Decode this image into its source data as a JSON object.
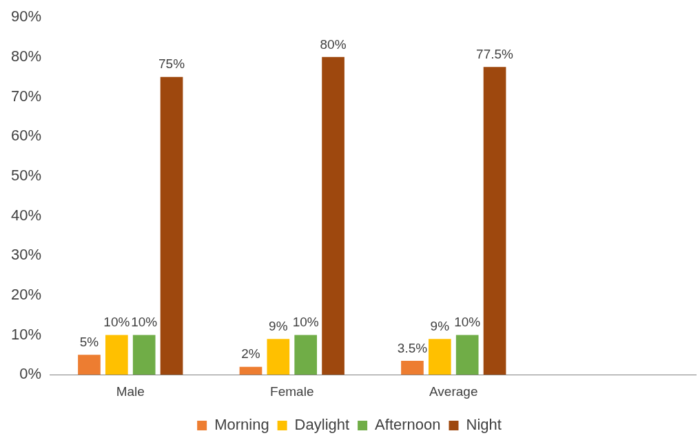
{
  "chart_data": {
    "type": "bar",
    "categories": [
      "Male",
      "Female",
      "Average",
      null
    ],
    "series": [
      {
        "name": "Morning",
        "color": "#ed7d31",
        "values": [
          5,
          2,
          3.5,
          null
        ],
        "value_labels": [
          "5%",
          "2%",
          "3.5%",
          null
        ]
      },
      {
        "name": "Daylight",
        "color": "#ffc000",
        "values": [
          10,
          9,
          9,
          null
        ],
        "value_labels": [
          "10%",
          "9%",
          "9%",
          null
        ]
      },
      {
        "name": "Afternoon",
        "color": "#70ad47",
        "values": [
          10,
          10,
          10,
          null
        ],
        "value_labels": [
          "10%",
          "10%",
          "10%",
          null
        ]
      },
      {
        "name": "Night",
        "color": "#9e480e",
        "values": [
          75,
          80,
          77.5,
          null
        ],
        "value_labels": [
          "75%",
          "80%",
          "77.5%",
          null
        ]
      }
    ],
    "ylim": [
      0,
      90
    ],
    "yticks": [
      {
        "value": 0,
        "label": "0%"
      },
      {
        "value": 10,
        "label": "10%"
      },
      {
        "value": 20,
        "label": "20%"
      },
      {
        "value": 30,
        "label": "30%"
      },
      {
        "value": 40,
        "label": "40%"
      },
      {
        "value": 50,
        "label": "50%"
      },
      {
        "value": 60,
        "label": "60%"
      },
      {
        "value": 70,
        "label": "70%"
      },
      {
        "value": 80,
        "label": "80%"
      },
      {
        "value": 90,
        "label": "90%"
      }
    ],
    "grid": false,
    "legend": "bottom"
  }
}
